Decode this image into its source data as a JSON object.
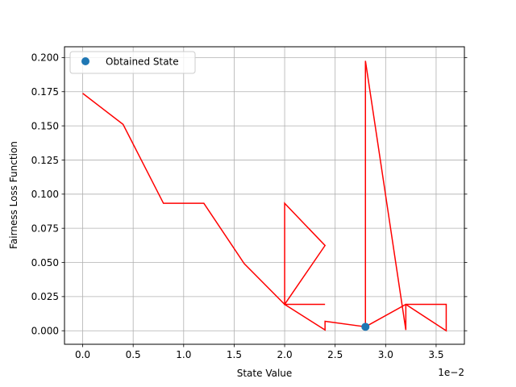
{
  "chart_data": {
    "type": "line",
    "title": "",
    "xlabel": "State Value",
    "ylabel": "Fairness Loss Function",
    "x_offset_label": "1e−2",
    "xlim": [
      -0.0018,
      0.0378
    ],
    "ylim": [
      -0.0099,
      0.2079
    ],
    "grid": true,
    "legend_position": "upper-left",
    "x_ticks": [
      0,
      0.005,
      0.01,
      0.015,
      0.02,
      0.025,
      0.03,
      0.035
    ],
    "x_tick_labels": [
      "0.0",
      "0.5",
      "1.0",
      "1.5",
      "2.0",
      "2.5",
      "3.0",
      "3.5"
    ],
    "y_ticks": [
      0,
      0.025,
      0.05,
      0.075,
      0.1,
      0.125,
      0.15,
      0.175,
      0.2
    ],
    "y_tick_labels": [
      "0.000",
      "0.025",
      "0.050",
      "0.075",
      "0.100",
      "0.125",
      "0.150",
      "0.175",
      "0.200"
    ],
    "series": [
      {
        "kind": "line",
        "color": "#ff0000",
        "points": [
          [
            0.0,
            0.1738
          ],
          [
            0.004,
            0.1511
          ],
          [
            0.008,
            0.0933
          ],
          [
            0.012,
            0.0933
          ],
          [
            0.016,
            0.0491
          ],
          [
            0.02,
            0.0193
          ],
          [
            0.024,
            0.0193
          ],
          [
            0.02,
            0.0193
          ],
          [
            0.024,
            0.0624
          ],
          [
            0.02,
            0.0933
          ],
          [
            0.02,
            0.0193
          ],
          [
            0.024,
            0.0006
          ],
          [
            0.024,
            0.0069
          ],
          [
            0.028,
            0.0029
          ],
          [
            0.028,
            0.1506
          ],
          [
            0.028,
            0.1976
          ],
          [
            0.032,
            0.0006
          ],
          [
            0.032,
            0.0193
          ],
          [
            0.036,
            0.0193
          ],
          [
            0.036,
            0.0
          ],
          [
            0.032,
            0.0193
          ],
          [
            0.028,
            0.0029
          ]
        ]
      },
      {
        "kind": "scatter",
        "name": "Obtained State",
        "color": "#1f77b4",
        "points": [
          [
            0.028,
            0.0029
          ]
        ]
      }
    ]
  }
}
